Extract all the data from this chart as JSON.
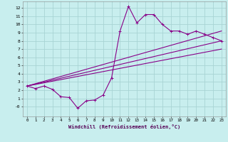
{
  "xlabel": "Windchill (Refroidissement éolien,°C)",
  "bg_color": "#c8eeee",
  "grid_color": "#a8d4d4",
  "line_color": "#880088",
  "x_main": [
    0,
    1,
    2,
    3,
    4,
    5,
    6,
    7,
    8,
    9,
    10,
    11,
    12,
    13,
    14,
    15,
    16,
    17,
    18,
    19,
    20,
    21,
    22,
    23
  ],
  "y_main": [
    2.5,
    2.2,
    2.5,
    2.1,
    1.2,
    1.1,
    -0.2,
    0.7,
    0.8,
    1.4,
    3.5,
    9.2,
    12.2,
    10.2,
    11.2,
    11.2,
    10.0,
    9.2,
    9.2,
    8.8,
    9.2,
    8.8,
    8.4,
    8.0
  ],
  "reg_lines": [
    [
      0,
      2.5,
      23,
      9.2
    ],
    [
      0,
      2.5,
      23,
      8.0
    ],
    [
      0,
      2.5,
      23,
      7.0
    ]
  ],
  "xlim": [
    -0.5,
    23.5
  ],
  "ylim": [
    -1.2,
    12.8
  ],
  "yticks": [
    0,
    1,
    2,
    3,
    4,
    5,
    6,
    7,
    8,
    9,
    10,
    11,
    12
  ],
  "ytick_labels": [
    "-0",
    "1",
    "2",
    "3",
    "4",
    "5",
    "6",
    "7",
    "8",
    "9",
    "10",
    "11",
    "12"
  ],
  "xticks": [
    0,
    1,
    2,
    3,
    4,
    5,
    6,
    7,
    8,
    9,
    10,
    11,
    12,
    13,
    14,
    15,
    16,
    17,
    18,
    19,
    20,
    21,
    22,
    23
  ]
}
